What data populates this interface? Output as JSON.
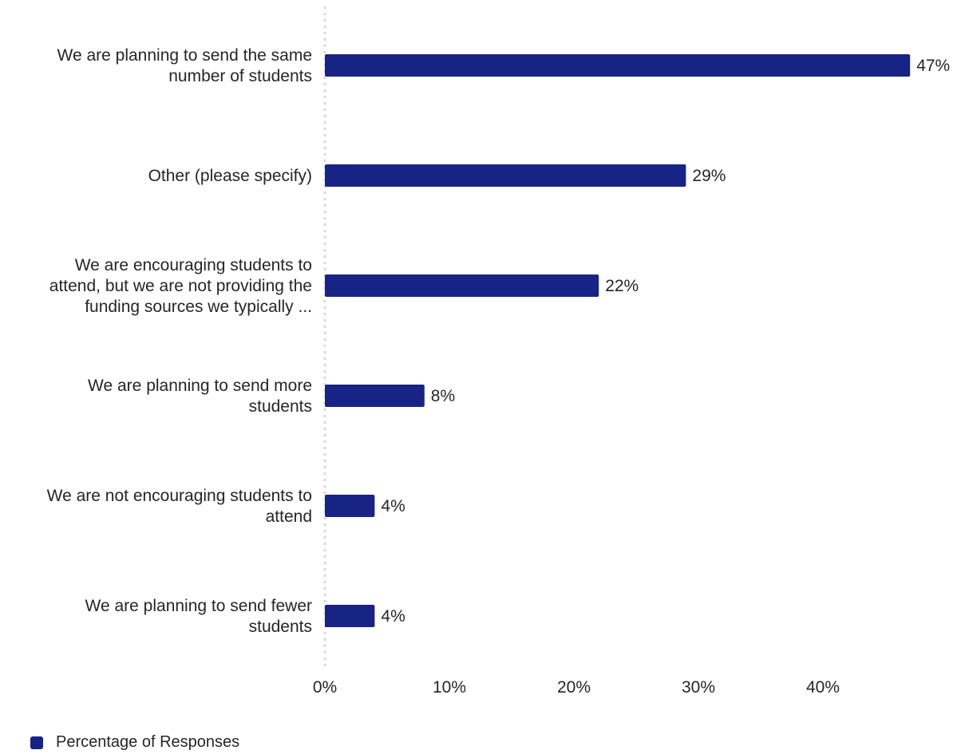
{
  "chart_data": {
    "type": "bar",
    "orientation": "horizontal",
    "categories": [
      [
        "We are planning to send the same",
        "number of students"
      ],
      [
        "Other (please specify)"
      ],
      [
        "We are encouraging students to",
        "attend, but we are not providing the",
        "funding sources we typically ..."
      ],
      [
        "We are planning to send more",
        "students"
      ],
      [
        "We are not encouraging students to",
        "attend"
      ],
      [
        "We are planning to send fewer",
        "students"
      ]
    ],
    "series": [
      {
        "name": "Percentage of Responses",
        "values": [
          47,
          29,
          22,
          8,
          4,
          4
        ],
        "labels": [
          "47%",
          "29%",
          "22%",
          "8%",
          "4%",
          "4%"
        ]
      }
    ],
    "xticks": [
      "0%",
      "10%",
      "20%",
      "30%",
      "40%"
    ],
    "xlim": [
      0,
      47
    ],
    "grid": false,
    "legend": "bottom-left",
    "colors": {
      "bar": "#172385",
      "axis": "#d9d9d9"
    }
  }
}
